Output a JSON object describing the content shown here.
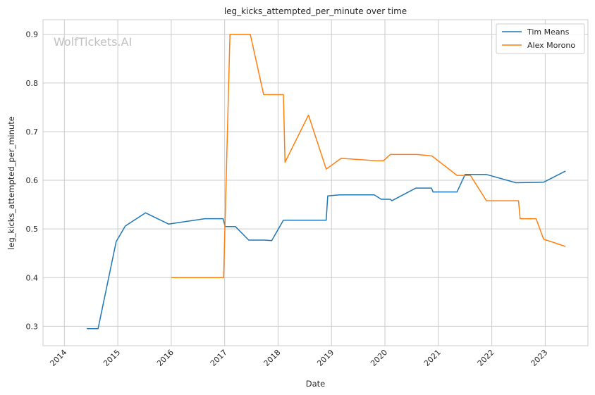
{
  "chart_data": {
    "type": "line",
    "title": "leg_kicks_attempted_per_minute over time",
    "xlabel": "Date",
    "ylabel": "leg_kicks_attempted_per_minute",
    "watermark": "WolfTickets.AI",
    "xlim": [
      2013.6,
      2023.8
    ],
    "ylim": [
      0.26,
      0.93
    ],
    "x_ticks": [
      2014,
      2015,
      2016,
      2017,
      2018,
      2019,
      2020,
      2021,
      2022,
      2023
    ],
    "x_tick_labels": [
      "2014",
      "2015",
      "2016",
      "2017",
      "2018",
      "2019",
      "2020",
      "2021",
      "2022",
      "2023"
    ],
    "y_ticks": [
      0.3,
      0.4,
      0.5,
      0.6,
      0.7,
      0.8,
      0.9
    ],
    "y_tick_labels": [
      "0.3",
      "0.4",
      "0.5",
      "0.6",
      "0.7",
      "0.8",
      "0.9"
    ],
    "grid": true,
    "legend": "top-right",
    "series": [
      {
        "name": "Tim Means",
        "color": "#1f77b4",
        "x": [
          2014.42,
          2014.63,
          2014.97,
          2015.14,
          2015.52,
          2015.95,
          2016.63,
          2016.97,
          2017.01,
          2017.2,
          2017.45,
          2017.75,
          2017.88,
          2018.1,
          2018.9,
          2018.93,
          2019.15,
          2019.8,
          2019.93,
          2020.1,
          2020.13,
          2020.58,
          2020.87,
          2020.9,
          2021.35,
          2021.5,
          2021.9,
          2022.45,
          2022.97,
          2023.38
        ],
        "y": [
          0.295,
          0.295,
          0.474,
          0.506,
          0.533,
          0.51,
          0.521,
          0.521,
          0.505,
          0.505,
          0.477,
          0.477,
          0.476,
          0.518,
          0.518,
          0.568,
          0.57,
          0.57,
          0.561,
          0.561,
          0.558,
          0.584,
          0.584,
          0.576,
          0.576,
          0.612,
          0.612,
          0.595,
          0.596,
          0.619
        ]
      },
      {
        "name": "Alex Morono",
        "color": "#ff7f0e",
        "x": [
          2016.0,
          2016.98,
          2017.1,
          2017.48,
          2017.73,
          2018.1,
          2018.13,
          2018.57,
          2018.9,
          2019.18,
          2019.85,
          2019.97,
          2020.1,
          2020.6,
          2020.88,
          2021.35,
          2021.6,
          2021.9,
          2022.5,
          2022.53,
          2022.83,
          2022.97,
          2023.38
        ],
        "y": [
          0.4,
          0.4,
          0.9,
          0.9,
          0.776,
          0.776,
          0.637,
          0.734,
          0.623,
          0.645,
          0.64,
          0.64,
          0.653,
          0.653,
          0.65,
          0.61,
          0.61,
          0.558,
          0.558,
          0.521,
          0.521,
          0.479,
          0.464
        ]
      }
    ]
  }
}
